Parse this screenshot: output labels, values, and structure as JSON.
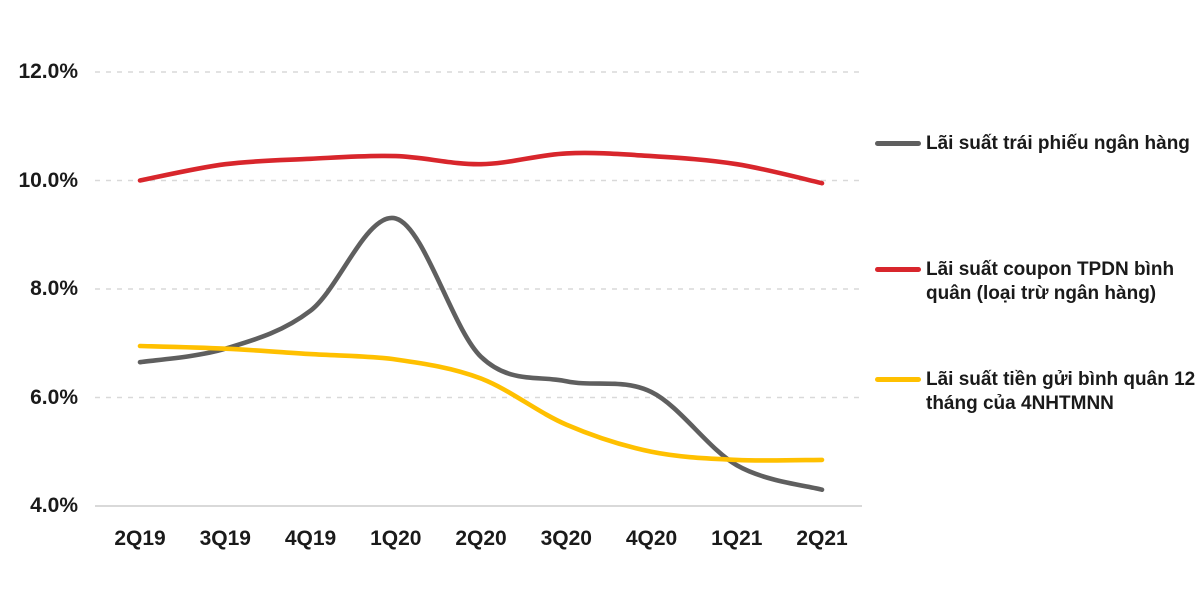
{
  "chart_data": {
    "type": "line",
    "categories": [
      "2Q19",
      "3Q19",
      "4Q19",
      "1Q20",
      "2Q20",
      "3Q20",
      "4Q20",
      "1Q21",
      "2Q21"
    ],
    "series": [
      {
        "name": "Lãi suất trái phiếu ngân hàng",
        "color": "#5f5f5f",
        "values": [
          6.65,
          6.9,
          7.6,
          9.3,
          6.75,
          6.3,
          6.1,
          4.75,
          4.3
        ]
      },
      {
        "name": "Lãi suất coupon TPDN bình quân (loại trừ ngân hàng)",
        "color": "#d8262c",
        "values": [
          10.0,
          10.3,
          10.4,
          10.45,
          10.3,
          10.5,
          10.45,
          10.3,
          9.95
        ]
      },
      {
        "name": "Lãi suất tiền gửi bình quân 12 tháng của 4NHTMNN",
        "color": "#ffc000",
        "values": [
          6.95,
          6.9,
          6.8,
          6.7,
          6.35,
          5.5,
          5.0,
          4.85,
          4.85
        ]
      }
    ],
    "y_ticks": [
      {
        "label": "12.0%",
        "value": 12
      },
      {
        "label": "10.0%",
        "value": 10
      },
      {
        "label": "8.0%",
        "value": 8
      },
      {
        "label": "6.0%",
        "value": 6
      },
      {
        "label": "4.0%",
        "value": 4
      }
    ],
    "ylim": [
      4,
      12
    ],
    "xlabel": "",
    "ylabel": "",
    "title": "",
    "grid": "horizontal-dashed",
    "legend_position": "right",
    "legend": [
      {
        "series": 0,
        "lines": [
          "Lãi suất trái phiếu ngân hàng"
        ]
      },
      {
        "series": 1,
        "lines": [
          "Lãi suất coupon TPDN bình",
          "quân (loại trừ ngân hàng)"
        ]
      },
      {
        "series": 2,
        "lines": [
          "Lãi suất tiền gửi bình quân 12",
          "tháng của 4NHTMNN"
        ]
      }
    ]
  },
  "style": {
    "gridline_color": "#d9d9d9",
    "axisline_color": "#d9d9d9",
    "text_color": "#1a1a1a",
    "background": "#ffffff"
  }
}
